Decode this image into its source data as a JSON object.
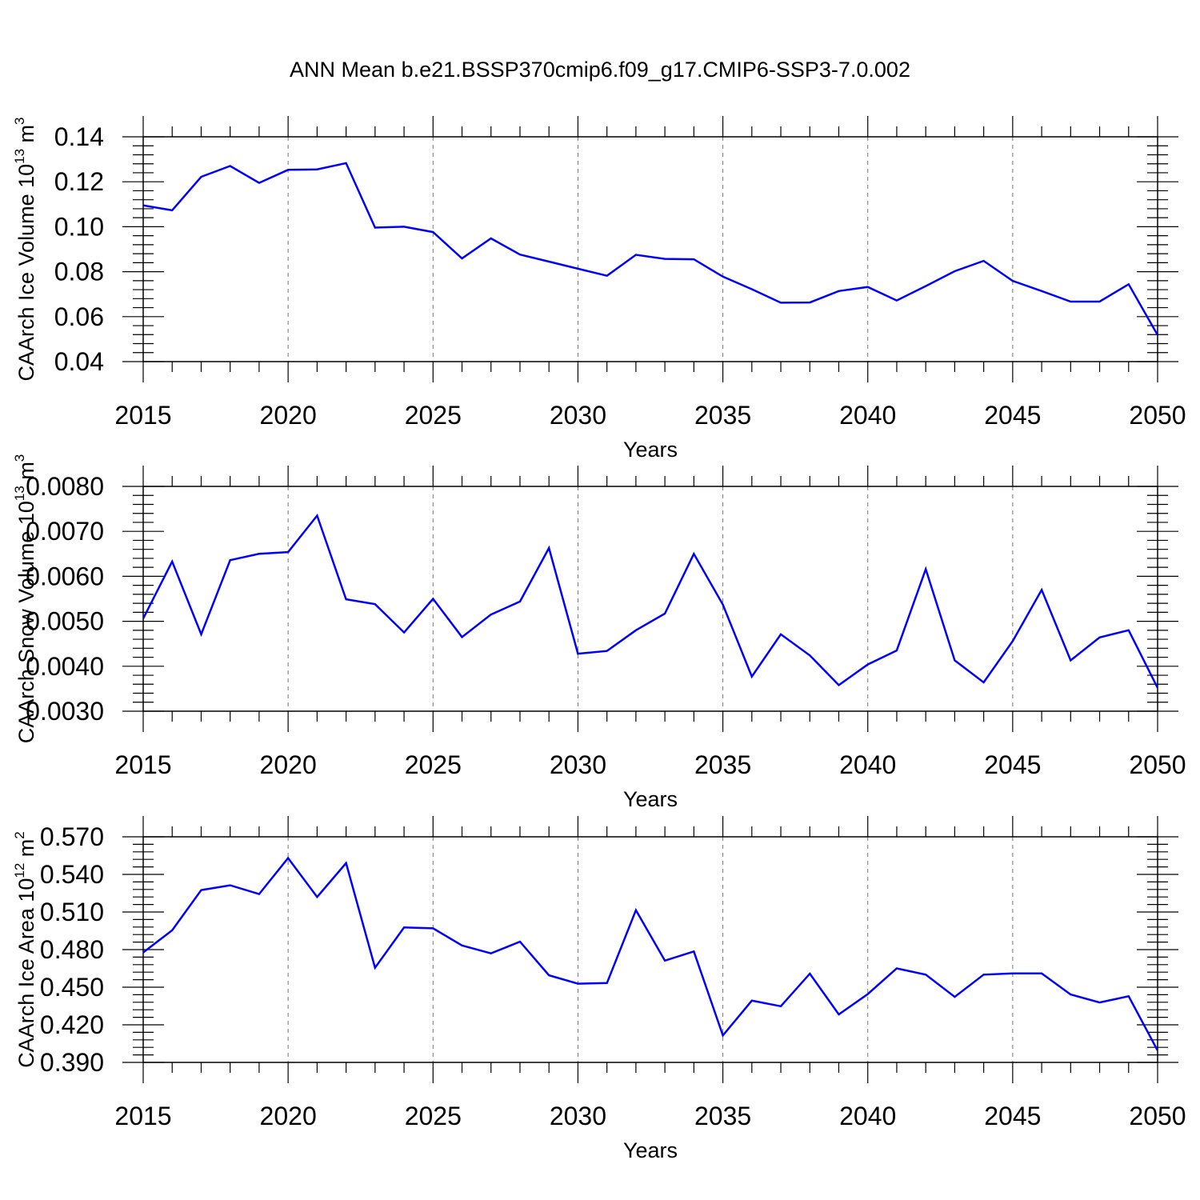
{
  "title": "ANN Mean b.e21.BSSP370cmip6.f09_g17.CMIP6-SSP3-7.0.002",
  "line_color": "#0000ff",
  "chart_data": [
    {
      "type": "line",
      "xlabel": "Years",
      "ylabel": "CAArch Ice Volume 10",
      "ylabel_exp": "13",
      "ylabel_unit": " m",
      "ylabel_unit_exp": "3",
      "xlim": [
        2015,
        2050
      ],
      "ylim": [
        0.04,
        0.14
      ],
      "yticks": [
        "0.04",
        "0.06",
        "0.08",
        "0.10",
        "0.12",
        "0.14"
      ],
      "xticks": [
        "2015",
        "2020",
        "2025",
        "2030",
        "2035",
        "2040",
        "2045",
        "2050"
      ],
      "x": [
        2015,
        2016,
        2017,
        2018,
        2019,
        2020,
        2021,
        2022,
        2023,
        2024,
        2025,
        2026,
        2027,
        2028,
        2029,
        2030,
        2031,
        2032,
        2033,
        2034,
        2035,
        2036,
        2037,
        2038,
        2039,
        2040,
        2041,
        2042,
        2043,
        2044,
        2045,
        2046,
        2047,
        2048,
        2049,
        2050
      ],
      "values": [
        0.1095,
        0.1073,
        0.1222,
        0.127,
        0.1195,
        0.1253,
        0.1255,
        0.1283,
        0.0996,
        0.1,
        0.0976,
        0.0859,
        0.0948,
        0.0876,
        0.0845,
        0.0813,
        0.0782,
        0.0875,
        0.0857,
        0.0855,
        0.0778,
        0.0722,
        0.0662,
        0.0663,
        0.0714,
        0.0732,
        0.0672,
        0.0736,
        0.0802,
        0.0848,
        0.0759,
        0.0714,
        0.0667,
        0.0667,
        0.0744,
        0.0518
      ]
    },
    {
      "type": "line",
      "xlabel": "Years",
      "ylabel": "CAArch Snow Volume 10",
      "ylabel_exp": "13",
      "ylabel_unit": " m",
      "ylabel_unit_exp": "3",
      "xlim": [
        2015,
        2050
      ],
      "ylim": [
        0.003,
        0.008
      ],
      "yticks": [
        "0.0030",
        "0.0040",
        "0.0050",
        "0.0060",
        "0.0070",
        "0.0080"
      ],
      "xticks": [
        "2015",
        "2020",
        "2025",
        "2030",
        "2035",
        "2040",
        "2045",
        "2050"
      ],
      "x": [
        2015,
        2016,
        2017,
        2018,
        2019,
        2020,
        2021,
        2022,
        2023,
        2024,
        2025,
        2026,
        2027,
        2028,
        2029,
        2030,
        2031,
        2032,
        2033,
        2034,
        2035,
        2036,
        2037,
        2038,
        2039,
        2040,
        2041,
        2042,
        2043,
        2044,
        2045,
        2046,
        2047,
        2048,
        2049,
        2050
      ],
      "values": [
        0.00506,
        0.00633,
        0.00471,
        0.00636,
        0.0065,
        0.00654,
        0.00735,
        0.00549,
        0.00538,
        0.00475,
        0.0055,
        0.00465,
        0.00515,
        0.00544,
        0.00663,
        0.00428,
        0.00434,
        0.0048,
        0.00517,
        0.0065,
        0.00537,
        0.00377,
        0.00471,
        0.00424,
        0.00358,
        0.00404,
        0.00435,
        0.00616,
        0.00413,
        0.00364,
        0.00456,
        0.0057,
        0.00413,
        0.00464,
        0.0048,
        0.00352
      ]
    },
    {
      "type": "line",
      "xlabel": "Years",
      "ylabel": "CAArch Ice Area 10",
      "ylabel_exp": "12",
      "ylabel_unit": " m",
      "ylabel_unit_exp": "2",
      "xlim": [
        2015,
        2050
      ],
      "ylim": [
        0.39,
        0.57
      ],
      "yticks": [
        "0.390",
        "0.420",
        "0.450",
        "0.480",
        "0.510",
        "0.540",
        "0.570"
      ],
      "xticks": [
        "2015",
        "2020",
        "2025",
        "2030",
        "2035",
        "2040",
        "2045",
        "2050"
      ],
      "x": [
        2015,
        2016,
        2017,
        2018,
        2019,
        2020,
        2021,
        2022,
        2023,
        2024,
        2025,
        2026,
        2027,
        2028,
        2029,
        2030,
        2031,
        2032,
        2033,
        2034,
        2035,
        2036,
        2037,
        2038,
        2039,
        2040,
        2041,
        2042,
        2043,
        2044,
        2045,
        2046,
        2047,
        2048,
        2049,
        2050
      ],
      "values": [
        0.4777,
        0.4954,
        0.5275,
        0.5313,
        0.5243,
        0.553,
        0.522,
        0.549,
        0.4655,
        0.4977,
        0.497,
        0.4833,
        0.477,
        0.4863,
        0.4595,
        0.4528,
        0.4533,
        0.5115,
        0.4712,
        0.4785,
        0.4115,
        0.4393,
        0.4348,
        0.4608,
        0.4283,
        0.4445,
        0.465,
        0.46,
        0.4423,
        0.46,
        0.461,
        0.461,
        0.4442,
        0.4378,
        0.4428,
        0.3995
      ]
    }
  ]
}
